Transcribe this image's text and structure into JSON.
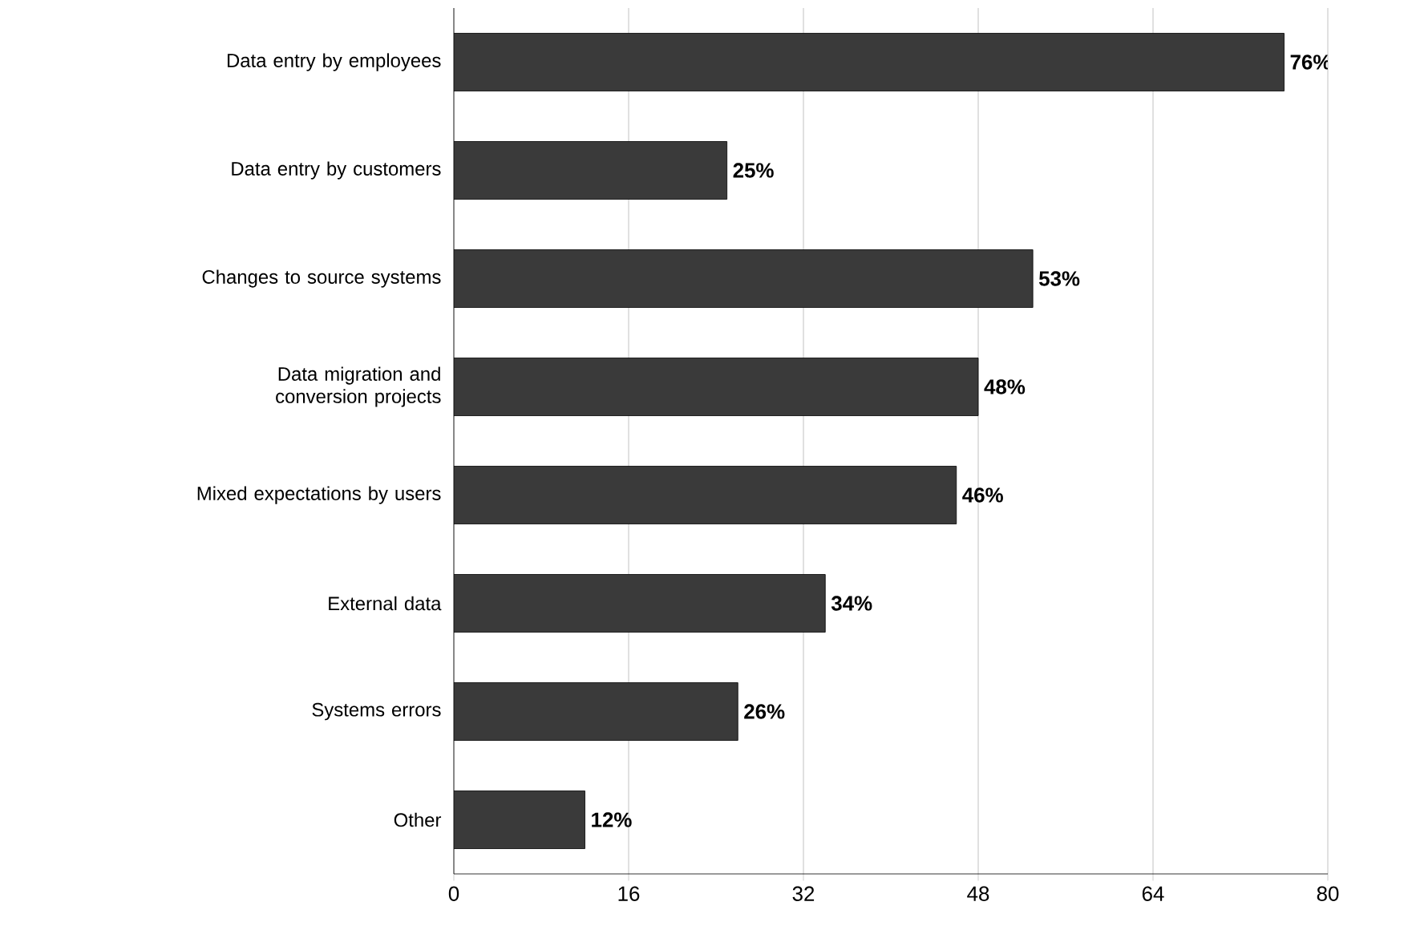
{
  "chart_data": {
    "type": "bar",
    "orientation": "horizontal",
    "categories": [
      "Data entry by employees",
      "Data entry by customers",
      "Changes to source systems",
      "Data migration and conversion projects",
      "Mixed expectations by users",
      "External data",
      "Systems errors",
      "Other"
    ],
    "values": [
      76,
      25,
      53,
      48,
      46,
      34,
      26,
      12
    ],
    "value_labels": [
      "76%",
      "25%",
      "53%",
      "48%",
      "46%",
      "34%",
      "26%",
      "12%"
    ],
    "color": "#3a3a3a",
    "xlim": [
      0,
      80
    ],
    "xticks": [
      0,
      16,
      32,
      48,
      64,
      80
    ],
    "grid": "x"
  }
}
